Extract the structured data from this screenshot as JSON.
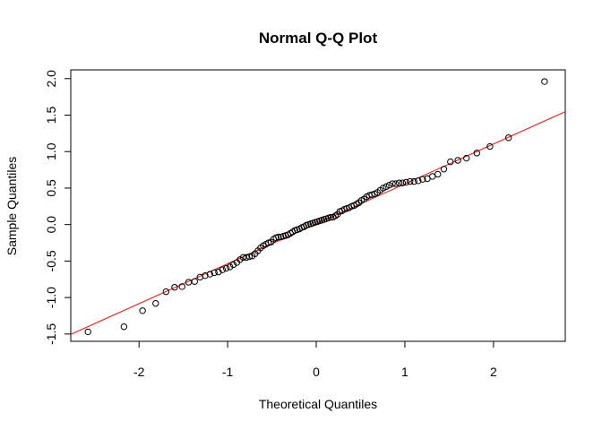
{
  "chart_data": {
    "type": "scatter",
    "title": "Normal Q-Q Plot",
    "x_label": "Theoretical Quantiles",
    "y_label": "Sample Quantiles",
    "x": [
      -2.576,
      -2.17,
      -1.96,
      -1.812,
      -1.695,
      -1.598,
      -1.514,
      -1.44,
      -1.372,
      -1.311,
      -1.254,
      -1.2,
      -1.15,
      -1.103,
      -1.058,
      -1.015,
      -0.974,
      -0.935,
      -0.896,
      -0.86,
      -0.824,
      -0.789,
      -0.755,
      -0.722,
      -0.69,
      -0.659,
      -0.628,
      -0.598,
      -0.568,
      -0.539,
      -0.51,
      -0.482,
      -0.454,
      -0.426,
      -0.399,
      -0.372,
      -0.345,
      -0.319,
      -0.292,
      -0.266,
      -0.24,
      -0.215,
      -0.189,
      -0.164,
      -0.138,
      -0.113,
      -0.088,
      -0.063,
      -0.038,
      -0.013,
      0.013,
      0.038,
      0.063,
      0.088,
      0.113,
      0.138,
      0.164,
      0.189,
      0.215,
      0.24,
      0.266,
      0.292,
      0.319,
      0.345,
      0.372,
      0.399,
      0.426,
      0.454,
      0.482,
      0.51,
      0.539,
      0.568,
      0.598,
      0.628,
      0.659,
      0.69,
      0.722,
      0.755,
      0.789,
      0.824,
      0.86,
      0.896,
      0.935,
      0.974,
      1.015,
      1.058,
      1.103,
      1.15,
      1.2,
      1.254,
      1.311,
      1.372,
      1.44,
      1.514,
      1.598,
      1.695,
      1.812,
      1.96,
      2.17,
      2.576
    ],
    "values": [
      -1.47,
      -1.4,
      -1.18,
      -1.08,
      -0.92,
      -0.86,
      -0.85,
      -0.79,
      -0.78,
      -0.72,
      -0.7,
      -0.68,
      -0.66,
      -0.65,
      -0.62,
      -0.6,
      -0.58,
      -0.55,
      -0.52,
      -0.48,
      -0.45,
      -0.45,
      -0.44,
      -0.43,
      -0.4,
      -0.36,
      -0.32,
      -0.29,
      -0.27,
      -0.25,
      -0.24,
      -0.2,
      -0.18,
      -0.17,
      -0.17,
      -0.16,
      -0.15,
      -0.14,
      -0.12,
      -0.1,
      -0.08,
      -0.07,
      -0.06,
      -0.04,
      -0.03,
      -0.01,
      0.0,
      0.01,
      0.02,
      0.03,
      0.04,
      0.05,
      0.06,
      0.07,
      0.08,
      0.09,
      0.1,
      0.1,
      0.12,
      0.14,
      0.18,
      0.19,
      0.21,
      0.22,
      0.23,
      0.25,
      0.26,
      0.28,
      0.3,
      0.33,
      0.35,
      0.38,
      0.4,
      0.41,
      0.42,
      0.44,
      0.47,
      0.5,
      0.52,
      0.54,
      0.56,
      0.56,
      0.57,
      0.57,
      0.58,
      0.59,
      0.59,
      0.6,
      0.62,
      0.63,
      0.66,
      0.69,
      0.76,
      0.86,
      0.88,
      0.91,
      0.98,
      1.07,
      1.19,
      1.96
    ],
    "color": "#000000",
    "reference_line": {
      "intercept": 0.01,
      "slope": 0.547,
      "color": "#ff0000"
    },
    "xlim": [
      -2.77,
      2.81
    ],
    "ylim": [
      -1.6,
      2.12
    ],
    "xticks": [
      -2,
      -1,
      0,
      1,
      2
    ],
    "yticks": [
      -1.5,
      {
        "value": -1,
        "label": "-1.0"
      },
      -0.5,
      {
        "value": 0,
        "label": "0.0"
      },
      0.5,
      {
        "value": 1,
        "label": "1.0"
      },
      1.5,
      {
        "value": 2,
        "label": "2.0"
      }
    ]
  }
}
